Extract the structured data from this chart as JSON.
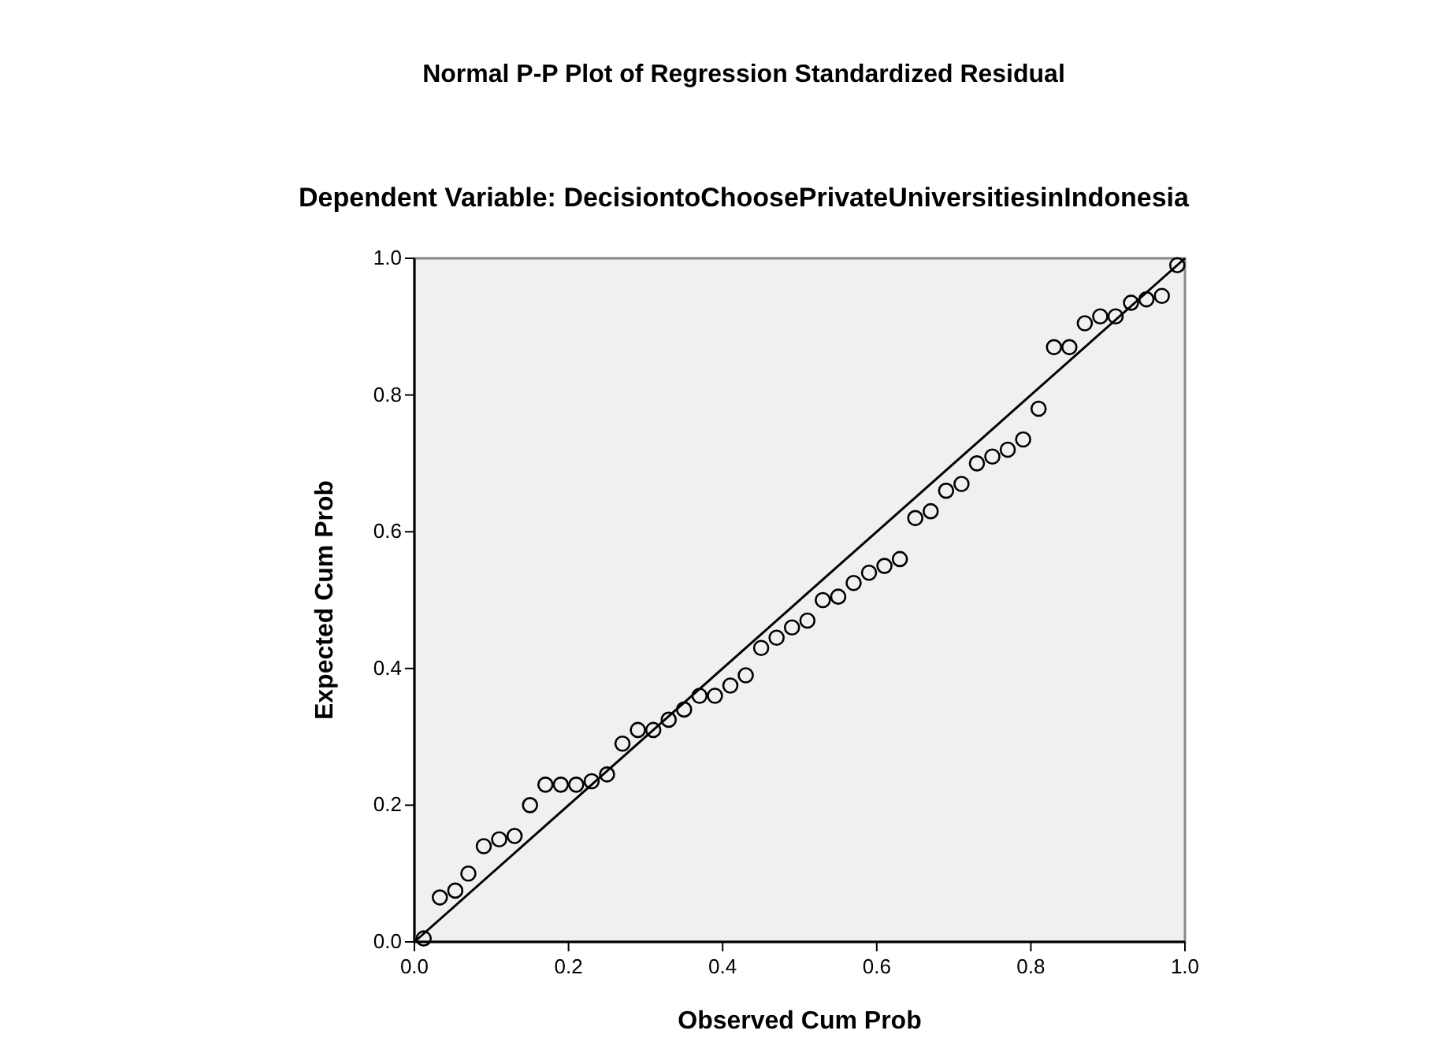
{
  "chart_data": {
    "type": "scatter",
    "title": "Normal P-P Plot of Regression Standardized Residual",
    "subtitle": "Dependent Variable: DecisiontoChoosePrivateUniversitiesinIndonesia",
    "xlabel": "Observed Cum Prob",
    "ylabel": "Expected Cum Prob",
    "xlim": [
      0,
      1
    ],
    "ylim": [
      0,
      1
    ],
    "xticks": [
      {
        "value": 0,
        "label": "0.0"
      },
      0.2,
      0.4,
      0.6,
      0.8,
      {
        "value": 1,
        "label": "1.0"
      }
    ],
    "yticks": [
      {
        "value": 0,
        "label": "0.0"
      },
      0.2,
      0.4,
      0.6,
      0.8,
      {
        "value": 1,
        "label": "1.0"
      }
    ],
    "grid": false,
    "series": [
      {
        "marker": "circle",
        "color": "#000000",
        "x": [
          0.012,
          0.033,
          0.053,
          0.07,
          0.09,
          0.11,
          0.13,
          0.15,
          0.17,
          0.19,
          0.21,
          0.23,
          0.25,
          0.27,
          0.29,
          0.31,
          0.33,
          0.35,
          0.37,
          0.39,
          0.41,
          0.43,
          0.45,
          0.47,
          0.49,
          0.51,
          0.53,
          0.55,
          0.57,
          0.59,
          0.61,
          0.63,
          0.65,
          0.67,
          0.69,
          0.71,
          0.73,
          0.75,
          0.77,
          0.79,
          0.81,
          0.83,
          0.85,
          0.87,
          0.89,
          0.91,
          0.93,
          0.95,
          0.97,
          0.99
        ],
        "values": [
          0.005,
          0.065,
          0.075,
          0.1,
          0.14,
          0.15,
          0.155,
          0.2,
          0.23,
          0.23,
          0.23,
          0.235,
          0.245,
          0.29,
          0.31,
          0.31,
          0.325,
          0.34,
          0.36,
          0.36,
          0.375,
          0.39,
          0.43,
          0.445,
          0.46,
          0.47,
          0.5,
          0.505,
          0.525,
          0.54,
          0.55,
          0.56,
          0.62,
          0.63,
          0.66,
          0.67,
          0.7,
          0.71,
          0.72,
          0.735,
          0.78,
          0.87,
          0.87,
          0.905,
          0.915,
          0.915,
          0.935,
          0.94,
          0.945,
          0.99
        ]
      },
      {
        "type": "line",
        "color": "#000000",
        "x": [
          0,
          1
        ],
        "values": [
          0,
          1
        ]
      }
    ]
  }
}
